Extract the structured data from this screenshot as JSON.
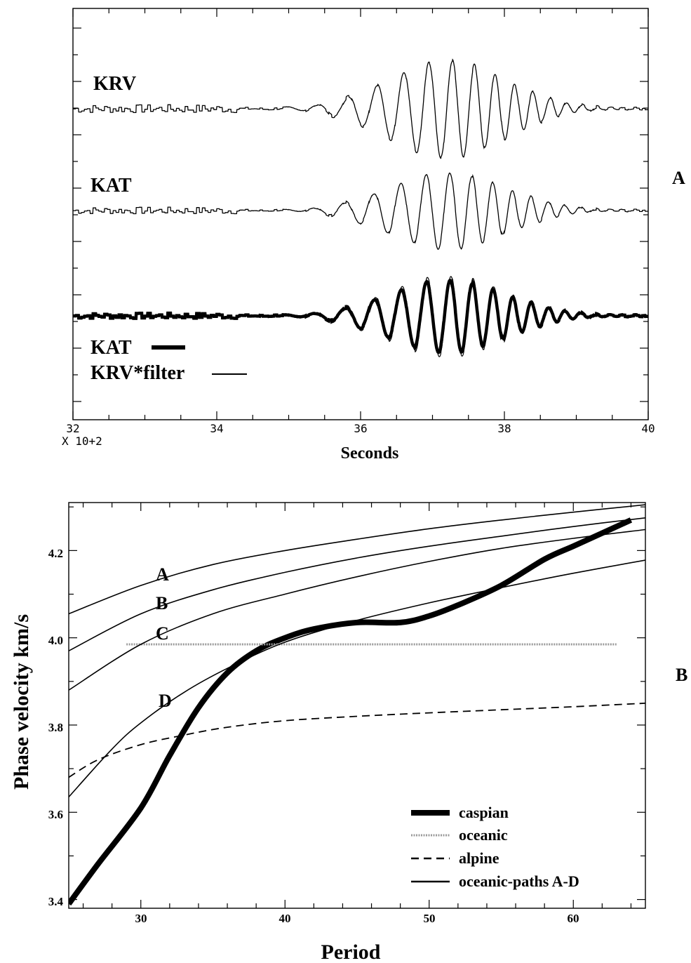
{
  "chart_data": [
    {
      "type": "line",
      "panel_label": "A",
      "xlabel": "Seconds",
      "x_multiplier": "X 10+2",
      "xlim": [
        32,
        40
      ],
      "x_ticks": [
        "32",
        "34",
        "36",
        "38",
        "40"
      ],
      "traces": [
        {
          "name": "KRV"
        },
        {
          "name": "KAT"
        }
      ],
      "legend": [
        {
          "label": "KAT",
          "style": "thick"
        },
        {
          "label": "KRV*filter",
          "style": "thin"
        }
      ]
    },
    {
      "type": "line",
      "panel_label": "B",
      "xlabel": "Period",
      "ylabel": "Phase velocity km/s",
      "xlim": [
        25,
        65
      ],
      "ylim": [
        3.38,
        4.31
      ],
      "x_ticks": [
        "30",
        "40",
        "50",
        "60"
      ],
      "y_ticks": [
        "3.4",
        "3.6",
        "3.8",
        "4.0",
        "4.2"
      ],
      "curve_labels": [
        "A",
        "B",
        "C",
        "D"
      ],
      "legend_position": "bottom-right",
      "legend": [
        {
          "label": "caspian",
          "style": "thick"
        },
        {
          "label": "oceanic",
          "style": "dotted"
        },
        {
          "label": "alpine",
          "style": "dashed"
        },
        {
          "label": "oceanic-paths A-D",
          "style": "solid"
        }
      ],
      "series": [
        {
          "key": "caspian",
          "style": "thick",
          "x": [
            25,
            27,
            30,
            32,
            34,
            36,
            38,
            40,
            42,
            45,
            48,
            50,
            52,
            55,
            58,
            60,
            62,
            64
          ],
          "y": [
            3.39,
            3.48,
            3.61,
            3.73,
            3.84,
            3.92,
            3.97,
            4.0,
            4.02,
            4.035,
            4.035,
            4.05,
            4.075,
            4.12,
            4.18,
            4.21,
            4.24,
            4.27
          ]
        },
        {
          "key": "oceanic",
          "style": "dotted",
          "x": [
            29,
            35,
            40,
            45,
            50,
            55,
            60,
            63
          ],
          "y": [
            3.985,
            3.985,
            3.985,
            3.985,
            3.985,
            3.985,
            3.985,
            3.985
          ]
        },
        {
          "key": "alpine",
          "style": "dashed",
          "x": [
            25,
            27,
            30,
            33,
            36,
            40,
            45,
            50,
            55,
            60,
            65
          ],
          "y": [
            3.68,
            3.72,
            3.755,
            3.777,
            3.795,
            3.81,
            3.82,
            3.828,
            3.835,
            3.842,
            3.85
          ]
        },
        {
          "key": "A",
          "style": "solid",
          "x": [
            25,
            30,
            35,
            40,
            45,
            50,
            55,
            60,
            65
          ],
          "y": [
            4.055,
            4.12,
            4.168,
            4.2,
            4.226,
            4.25,
            4.27,
            4.288,
            4.305
          ]
        },
        {
          "key": "B",
          "style": "solid",
          "x": [
            25,
            30,
            35,
            40,
            45,
            50,
            55,
            60,
            65
          ],
          "y": [
            3.97,
            4.055,
            4.11,
            4.15,
            4.183,
            4.21,
            4.233,
            4.255,
            4.275
          ]
        },
        {
          "key": "C",
          "style": "solid",
          "x": [
            25,
            30,
            35,
            40,
            45,
            50,
            55,
            60,
            65
          ],
          "y": [
            3.88,
            3.985,
            4.055,
            4.1,
            4.14,
            4.175,
            4.205,
            4.228,
            4.248
          ]
        },
        {
          "key": "D",
          "style": "solid",
          "x": [
            25,
            28,
            30,
            33,
            36,
            40,
            45,
            50,
            55,
            60,
            65
          ],
          "y": [
            3.635,
            3.745,
            3.805,
            3.875,
            3.93,
            3.99,
            4.04,
            4.08,
            4.115,
            4.148,
            4.178
          ]
        }
      ]
    }
  ]
}
